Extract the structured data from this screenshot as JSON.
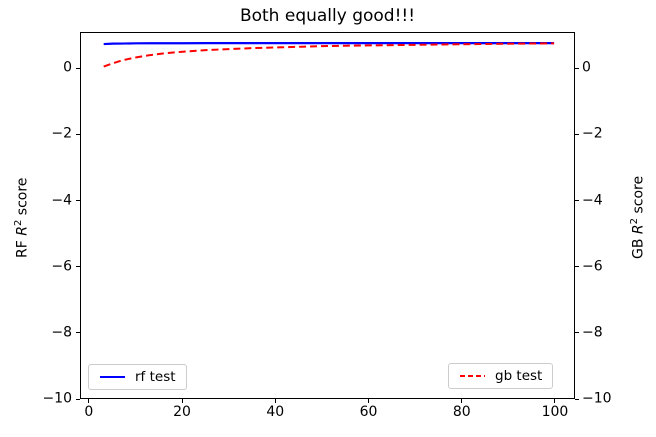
{
  "chart_data": {
    "type": "line",
    "title": "Both equally good!!!",
    "xlabel": "",
    "ylabel_left_parts": {
      "pre": "RF ",
      "variable": "R",
      "sup": "2",
      "post": " score"
    },
    "ylabel_right_parts": {
      "pre": "GB ",
      "variable": "R",
      "sup": "2",
      "post": " score"
    },
    "xlim": [
      -1.9,
      104.3
    ],
    "ylim": [
      -10,
      1.1
    ],
    "xticks": [
      0,
      20,
      40,
      60,
      80,
      100
    ],
    "yticks_left": [
      0,
      -2,
      -4,
      -6,
      -8,
      -10
    ],
    "yticks_right": [
      0,
      -2,
      -4,
      -6,
      -8,
      -10
    ],
    "grid": false,
    "x": [
      3,
      5,
      7,
      10,
      13,
      16,
      20,
      25,
      30,
      35,
      40,
      45,
      50,
      55,
      60,
      65,
      70,
      75,
      80,
      85,
      90,
      95,
      100
    ],
    "series": [
      {
        "name": "rf test",
        "axis": "left",
        "color": "#0000ff",
        "linestyle": "solid",
        "values": [
          0.765,
          0.775,
          0.78,
          0.785,
          0.787,
          0.788,
          0.789,
          0.79,
          0.79,
          0.79,
          0.79,
          0.79,
          0.79,
          0.79,
          0.79,
          0.79,
          0.79,
          0.79,
          0.79,
          0.79,
          0.79,
          0.79,
          0.79
        ]
      },
      {
        "name": "gb test",
        "axis": "right",
        "color": "#ff0000",
        "linestyle": "dashed",
        "values": [
          0.08,
          0.18,
          0.27,
          0.36,
          0.43,
          0.48,
          0.53,
          0.58,
          0.61,
          0.64,
          0.66,
          0.68,
          0.7,
          0.712,
          0.722,
          0.732,
          0.74,
          0.75,
          0.758,
          0.765,
          0.772,
          0.778,
          0.785
        ]
      }
    ],
    "legends": [
      {
        "label": "rf test",
        "position": "lower left"
      },
      {
        "label": "gb test",
        "position": "lower right"
      }
    ],
    "colors": {
      "axis": "#000000",
      "background": "#ffffff"
    }
  }
}
